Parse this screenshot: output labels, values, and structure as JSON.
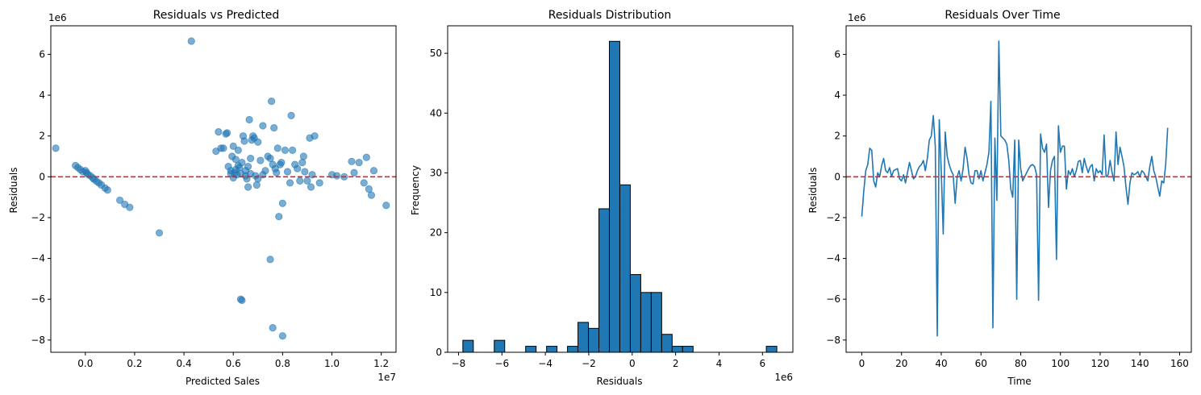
{
  "chart_data": [
    {
      "type": "scatter",
      "title": "Residuals vs Predicted",
      "xlabel": "Predicted Sales",
      "ylabel": "Residuals",
      "x_multiplier": "1e7",
      "y_multiplier": "1e6",
      "xlim": [
        -1.4,
        12.6
      ],
      "ylim": [
        -8.6,
        7.4
      ],
      "xticks": [
        "0.0",
        "0.2",
        "0.4",
        "0.6",
        "0.8",
        "1.0",
        "1.2"
      ],
      "xtick_values": [
        0,
        2,
        4,
        6,
        8,
        10,
        12
      ],
      "yticks": [
        "−8",
        "−6",
        "−4",
        "−2",
        "0",
        "2",
        "4",
        "6"
      ],
      "ytick_values": [
        -8,
        -6,
        -4,
        -2,
        0,
        2,
        4,
        6
      ],
      "color": "#1f77b4",
      "reference_line": {
        "y": 0,
        "color": "#d62728",
        "style": "dashed"
      },
      "points": [
        [
          -1.2,
          1.4
        ],
        [
          -0.4,
          0.55
        ],
        [
          -0.3,
          0.45
        ],
        [
          -0.2,
          0.35
        ],
        [
          -0.1,
          0.25
        ],
        [
          0.0,
          0.3
        ],
        [
          0.05,
          0.2
        ],
        [
          0.1,
          0.12
        ],
        [
          0.2,
          0.05
        ],
        [
          0.3,
          -0.05
        ],
        [
          0.35,
          -0.12
        ],
        [
          0.45,
          -0.22
        ],
        [
          0.55,
          -0.3
        ],
        [
          0.65,
          -0.4
        ],
        [
          0.8,
          -0.55
        ],
        [
          0.9,
          -0.65
        ],
        [
          1.4,
          -1.15
        ],
        [
          1.6,
          -1.35
        ],
        [
          1.8,
          -1.5
        ],
        [
          3.0,
          -2.75
        ],
        [
          4.3,
          6.65
        ],
        [
          5.3,
          1.25
        ],
        [
          5.4,
          2.2
        ],
        [
          5.5,
          1.4
        ],
        [
          5.6,
          1.4
        ],
        [
          5.7,
          2.1
        ],
        [
          5.75,
          2.15
        ],
        [
          5.8,
          0.5
        ],
        [
          5.9,
          0.3
        ],
        [
          5.95,
          1.0
        ],
        [
          6.0,
          1.5
        ],
        [
          6.05,
          0.2
        ],
        [
          6.1,
          0.35
        ],
        [
          6.15,
          0.1
        ],
        [
          6.2,
          1.3
        ],
        [
          6.25,
          0.45
        ],
        [
          6.3,
          0.15
        ],
        [
          6.35,
          0.7
        ],
        [
          6.4,
          2.0
        ],
        [
          6.45,
          1.75
        ],
        [
          6.5,
          0.3
        ],
        [
          6.55,
          -0.1
        ],
        [
          6.6,
          0.5
        ],
        [
          6.65,
          2.8
        ],
        [
          6.7,
          0.9
        ],
        [
          6.75,
          1.8
        ],
        [
          6.8,
          2.0
        ],
        [
          6.85,
          1.9
        ],
        [
          6.9,
          0.05
        ],
        [
          6.95,
          -0.4
        ],
        [
          7.0,
          1.7
        ],
        [
          7.1,
          0.8
        ],
        [
          7.2,
          2.5
        ],
        [
          7.3,
          0.3
        ],
        [
          7.4,
          1.0
        ],
        [
          7.5,
          0.9
        ],
        [
          7.55,
          3.7
        ],
        [
          7.6,
          0.6
        ],
        [
          7.65,
          2.4
        ],
        [
          7.7,
          0.4
        ],
        [
          7.75,
          0.2
        ],
        [
          7.8,
          1.4
        ],
        [
          7.85,
          -1.95
        ],
        [
          7.9,
          0.6
        ],
        [
          7.95,
          0.7
        ],
        [
          8.0,
          -1.3
        ],
        [
          8.1,
          1.3
        ],
        [
          8.2,
          0.25
        ],
        [
          8.3,
          -0.3
        ],
        [
          8.35,
          3.0
        ],
        [
          8.4,
          1.3
        ],
        [
          8.5,
          0.6
        ],
        [
          8.6,
          0.4
        ],
        [
          8.7,
          -0.2
        ],
        [
          8.8,
          0.7
        ],
        [
          8.85,
          1.0
        ],
        [
          8.9,
          0.25
        ],
        [
          9.0,
          -0.2
        ],
        [
          9.1,
          1.9
        ],
        [
          9.15,
          -0.5
        ],
        [
          9.2,
          0.1
        ],
        [
          9.3,
          2.0
        ],
        [
          9.5,
          -0.3
        ],
        [
          10.0,
          0.1
        ],
        [
          10.2,
          0.05
        ],
        [
          10.5,
          0.0
        ],
        [
          10.8,
          0.75
        ],
        [
          10.9,
          0.2
        ],
        [
          11.1,
          0.7
        ],
        [
          11.3,
          -0.3
        ],
        [
          11.4,
          0.95
        ],
        [
          11.5,
          -0.6
        ],
        [
          11.6,
          -0.9
        ],
        [
          11.7,
          0.3
        ],
        [
          12.2,
          -1.4
        ],
        [
          6.3,
          -6.0
        ],
        [
          6.35,
          -6.05
        ],
        [
          7.5,
          -4.05
        ],
        [
          7.6,
          -7.4
        ],
        [
          8.0,
          -7.8
        ],
        [
          6.2,
          0.55
        ],
        [
          6.1,
          0.85
        ],
        [
          6.5,
          0.05
        ],
        [
          6.6,
          -0.5
        ],
        [
          6.7,
          0.15
        ],
        [
          7.0,
          -0.1
        ],
        [
          7.2,
          0.1
        ],
        [
          5.9,
          0.15
        ],
        [
          6.0,
          -0.05
        ]
      ]
    },
    {
      "type": "bar",
      "title": "Residuals Distribution",
      "xlabel": "Residuals",
      "ylabel": "Frequency",
      "x_multiplier": "1e6",
      "xlim": [
        -8.5,
        7.4
      ],
      "ylim": [
        0,
        54.6
      ],
      "xticks": [
        "−8",
        "−6",
        "−4",
        "−2",
        "0",
        "2",
        "4",
        "6"
      ],
      "xtick_values": [
        -8,
        -6,
        -4,
        -2,
        0,
        2,
        4,
        6
      ],
      "yticks": [
        "0",
        "10",
        "20",
        "30",
        "40",
        "50"
      ],
      "ytick_values": [
        0,
        10,
        20,
        30,
        40,
        50
      ],
      "color": "#1f77b4",
      "bin_start": -7.8,
      "bin_width": 0.482,
      "values": [
        2,
        0,
        0,
        2,
        0,
        0,
        1,
        0,
        1,
        0,
        1,
        5,
        4,
        24,
        52,
        28,
        13,
        10,
        10,
        3,
        1,
        1,
        0,
        0,
        0,
        0,
        0,
        0,
        0,
        1
      ]
    },
    {
      "type": "line",
      "title": "Residuals Over Time",
      "xlabel": "Time",
      "ylabel": "Residuals",
      "y_multiplier": "1e6",
      "xlim": [
        -7.9,
        165.9
      ],
      "ylim": [
        -8.6,
        7.4
      ],
      "xticks": [
        "0",
        "20",
        "40",
        "60",
        "80",
        "100",
        "120",
        "140",
        "160"
      ],
      "xtick_values": [
        0,
        20,
        40,
        60,
        80,
        100,
        120,
        140,
        160
      ],
      "yticks": [
        "−8",
        "−6",
        "−4",
        "−2",
        "0",
        "2",
        "4",
        "6"
      ],
      "ytick_values": [
        -8,
        -6,
        -4,
        -2,
        0,
        2,
        4,
        6
      ],
      "color": "#1f77b4",
      "reference_line": {
        "y": 0,
        "color": "#d62728",
        "style": "dashed"
      },
      "values": [
        -1.95,
        -0.7,
        0.3,
        0.6,
        1.4,
        1.3,
        -0.2,
        -0.5,
        0.2,
        0.0,
        0.55,
        0.9,
        0.3,
        0.2,
        0.45,
        0.0,
        0.3,
        0.35,
        0.4,
        -0.1,
        -0.2,
        0.1,
        -0.3,
        0.2,
        0.7,
        0.3,
        -0.1,
        0.0,
        0.3,
        0.5,
        0.6,
        0.8,
        0.3,
        0.9,
        1.8,
        2.0,
        3.0,
        1.5,
        -7.8,
        2.8,
        0.3,
        -2.8,
        2.2,
        1.0,
        0.6,
        0.3,
        0.1,
        -1.3,
        0.0,
        0.3,
        -0.2,
        0.4,
        1.45,
        0.9,
        0.1,
        -0.3,
        -0.35,
        0.3,
        0.3,
        -0.1,
        0.3,
        -0.2,
        0.2,
        0.6,
        1.2,
        3.7,
        -7.4,
        1.9,
        -1.15,
        6.65,
        2.0,
        1.9,
        1.8,
        1.6,
        0.8,
        -0.6,
        -1.0,
        1.8,
        -6.0,
        1.8,
        0.4,
        -0.2,
        0.0,
        0.2,
        0.4,
        0.55,
        0.6,
        0.5,
        0.1,
        -6.05,
        2.1,
        1.4,
        1.2,
        1.6,
        -1.5,
        0.3,
        0.8,
        1.0,
        -4.05,
        2.5,
        1.2,
        1.5,
        1.5,
        -0.6,
        0.3,
        0.1,
        0.4,
        0.0,
        0.3,
        0.75,
        0.8,
        0.2,
        0.9,
        0.5,
        0.2,
        0.5,
        0.6,
        -0.2,
        0.4,
        0.2,
        0.3,
        0.1,
        2.05,
        0.0,
        0.1,
        0.8,
        0.2,
        -0.2,
        2.2,
        0.6,
        1.45,
        1.0,
        0.5,
        -0.5,
        -1.35,
        -0.3,
        0.2,
        0.1,
        0.15,
        0.25,
        0.0,
        0.3,
        0.2,
        0.0,
        -0.2,
        0.5,
        1.0,
        0.3,
        0.0,
        -0.5,
        -0.95,
        -0.2,
        -0.3,
        0.6,
        2.4
      ]
    }
  ]
}
